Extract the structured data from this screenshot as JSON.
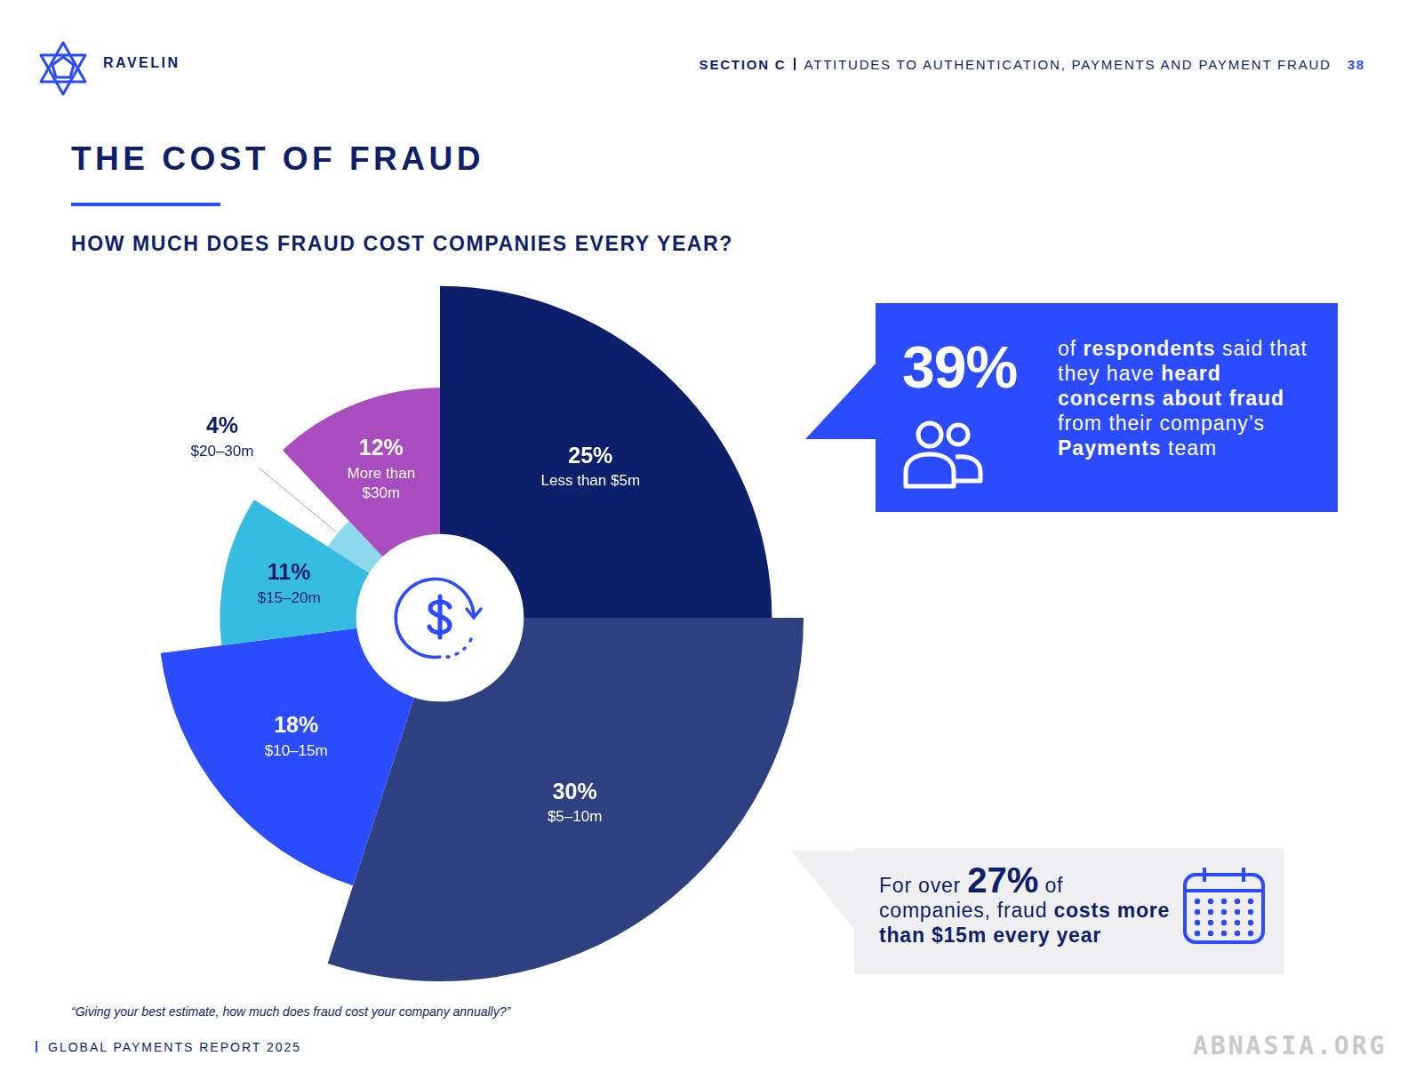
{
  "brand": "RAVELIN",
  "header": {
    "section": "SECTION C",
    "topic": "ATTITUDES TO AUTHENTICATION, PAYMENTS AND PAYMENT FRAUD",
    "page": "38"
  },
  "title": "THE COST OF FRAUD",
  "chart_data": {
    "type": "pie",
    "title": "HOW MUCH DOES FRAUD COST COMPANIES EVERY YEAR?",
    "categories": [
      "Less than $5m",
      "$5–10m",
      "$10–15m",
      "$15–20m",
      "$20–30m",
      "More than $30m"
    ],
    "values": [
      25,
      30,
      18,
      11,
      4,
      12
    ],
    "value_labels": [
      "25%",
      "30%",
      "18%",
      "11%",
      "4%",
      "12%"
    ],
    "colors": [
      "#0d1f6b",
      "#2e4080",
      "#2b4bff",
      "#35bce0",
      "#8dd8ec",
      "#a84cbf"
    ],
    "data_labels": true
  },
  "callouts": [
    {
      "figure": "39%",
      "text": [
        {
          "text": "of "
        },
        {
          "text": "respondents",
          "bold": true
        },
        {
          "text": " said that they have "
        },
        {
          "text": "heard concerns about fraud",
          "bold": true
        },
        {
          "text": " from their company’s "
        },
        {
          "text": "Payments",
          "bold": true
        },
        {
          "text": " team"
        }
      ]
    },
    {
      "text": [
        {
          "text": "For over "
        },
        {
          "text": "27%",
          "big": true
        },
        {
          "text": " of companies, fraud "
        },
        {
          "text": "costs more than $15m every year",
          "bold": true
        }
      ]
    }
  ],
  "question": "“Giving your best estimate, how much does fraud cost your company annually?”",
  "footer": "GLOBAL PAYMENTS REPORT 2025",
  "watermark": "ABNASIA.ORG"
}
